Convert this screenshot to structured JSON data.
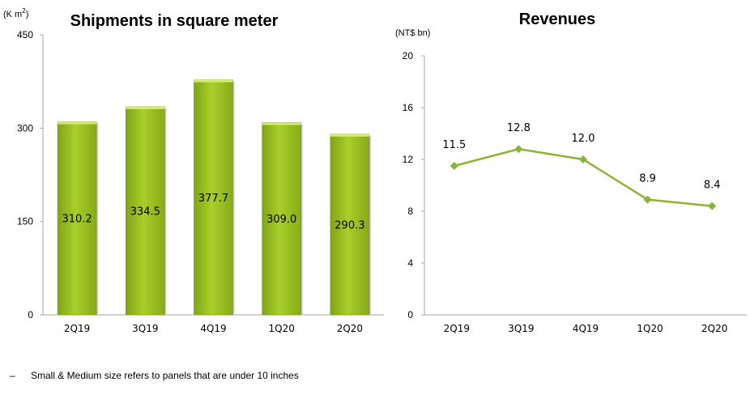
{
  "chart_data": [
    {
      "type": "bar",
      "title": "Shipments in square meter",
      "unit_label": "(K m",
      "unit_sup": "2",
      "unit_close": ")",
      "categories": [
        "2Q19",
        "3Q19",
        "4Q19",
        "1Q20",
        "2Q20"
      ],
      "values": [
        310.2,
        334.5,
        377.7,
        309.0,
        290.3
      ],
      "value_labels": [
        "310.2",
        "334.5",
        "377.7",
        "309.0",
        "290.3"
      ],
      "yticks": [
        "0",
        "150",
        "300",
        "450"
      ],
      "ylim": [
        0,
        450
      ],
      "color": "#97c11f"
    },
    {
      "type": "line",
      "title": "Revenues",
      "unit_label": "(NT$ bn)",
      "categories": [
        "2Q19",
        "3Q19",
        "4Q19",
        "1Q20",
        "2Q20"
      ],
      "values": [
        11.5,
        12.8,
        12.0,
        8.9,
        8.4
      ],
      "value_labels": [
        "11.5",
        "12.8",
        "12.0",
        "8.9",
        "8.4"
      ],
      "yticks": [
        "0",
        "4",
        "8",
        "12",
        "16",
        "20"
      ],
      "ylim": [
        0,
        20
      ],
      "color": "#8ab534"
    }
  ],
  "footnote": {
    "bullet": "–",
    "text": "Small & Medium size refers to panels that are under 10 inches"
  }
}
